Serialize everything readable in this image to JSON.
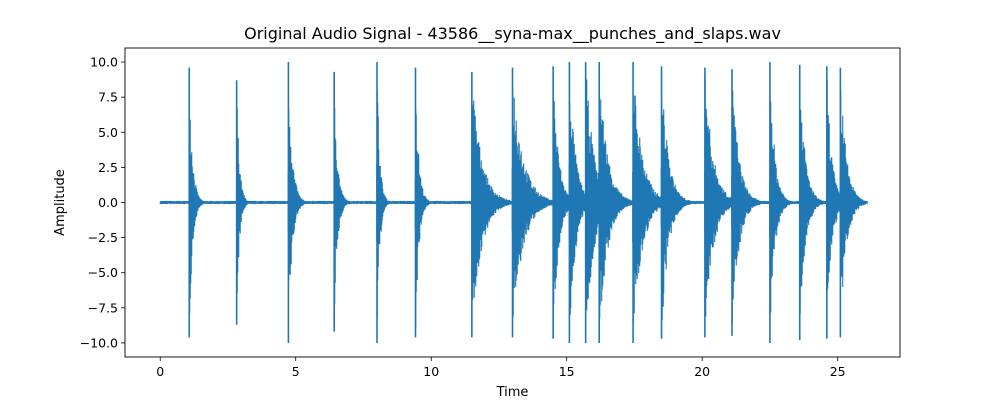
{
  "chart_data": {
    "type": "line",
    "title": "Original Audio Signal - 43586__syna-max__punches_and_slaps.wav",
    "xlabel": "Time",
    "ylabel": "Amplitude",
    "xlim": [
      -1.3,
      27.3
    ],
    "ylim": [
      -11.0,
      11.0
    ],
    "xticks": [
      0,
      5,
      10,
      15,
      20,
      25
    ],
    "yticks": [
      -10.0,
      -7.5,
      -5.0,
      -2.5,
      0.0,
      2.5,
      5.0,
      7.5,
      10.0
    ],
    "grid": false,
    "legend": "none",
    "colors": {
      "line": "#1f77b4"
    },
    "signal_range": [
      0,
      26.1
    ],
    "events": [
      {
        "t": 1.07,
        "peak": 9.6,
        "trough": -9.6,
        "decay": 0.12
      },
      {
        "t": 2.82,
        "peak": 8.7,
        "trough": -8.7,
        "decay": 0.1
      },
      {
        "t": 4.73,
        "peak": 10.0,
        "trough": -10.0,
        "decay": 0.14
      },
      {
        "t": 6.42,
        "peak": 9.3,
        "trough": -9.2,
        "decay": 0.12
      },
      {
        "t": 8.0,
        "peak": 10.0,
        "trough": -10.0,
        "decay": 0.1
      },
      {
        "t": 9.42,
        "peak": 9.6,
        "trough": -9.6,
        "decay": 0.12
      },
      {
        "t": 11.5,
        "peak": 9.3,
        "trough": -9.6,
        "decay": 0.35
      },
      {
        "t": 13.0,
        "peak": 9.6,
        "trough": -9.6,
        "decay": 0.38
      },
      {
        "t": 14.5,
        "peak": 9.7,
        "trough": -9.7,
        "decay": 0.2
      },
      {
        "t": 15.1,
        "peak": 10.0,
        "trough": -10.0,
        "decay": 0.22
      },
      {
        "t": 15.7,
        "peak": 10.0,
        "trough": -10.0,
        "decay": 0.3
      },
      {
        "t": 16.2,
        "peak": 10.0,
        "trough": -10.0,
        "decay": 0.3
      },
      {
        "t": 17.45,
        "peak": 10.0,
        "trough": -10.0,
        "decay": 0.33
      },
      {
        "t": 18.5,
        "peak": 9.7,
        "trough": -9.7,
        "decay": 0.25
      },
      {
        "t": 20.1,
        "peak": 9.6,
        "trough": -9.6,
        "decay": 0.3
      },
      {
        "t": 21.1,
        "peak": 9.5,
        "trough": -9.5,
        "decay": 0.25
      },
      {
        "t": 22.5,
        "peak": 10.0,
        "trough": -10.0,
        "decay": 0.18
      },
      {
        "t": 23.6,
        "peak": 9.8,
        "trough": -9.8,
        "decay": 0.2
      },
      {
        "t": 24.6,
        "peak": 9.7,
        "trough": -9.7,
        "decay": 0.18
      },
      {
        "t": 25.1,
        "peak": 9.6,
        "trough": -9.6,
        "decay": 0.22
      }
    ]
  }
}
